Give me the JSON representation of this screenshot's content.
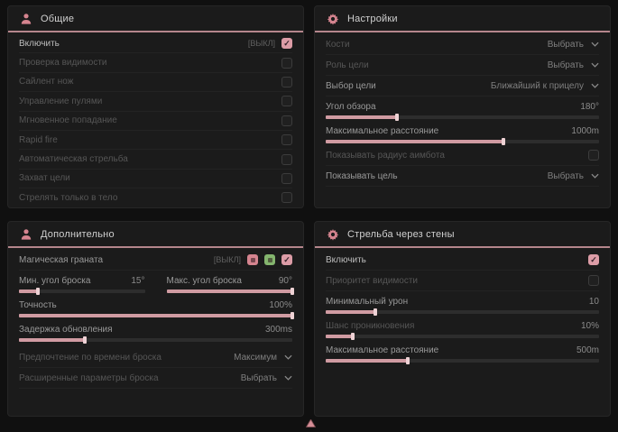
{
  "colors": {
    "accent": "#d09ba2",
    "header_underline": "#b5868c",
    "icon_pink": "#d5848f",
    "swatch_green": "#84b56e",
    "panel_bg": "#1b1b1b",
    "page_bg": "#101010",
    "checkbox_checked": "#dc9ca6"
  },
  "panels": {
    "general": {
      "title": "Общие",
      "icon": "person-icon",
      "rows": [
        {
          "label": "Включить",
          "badge": "[ВЫКЛ]",
          "checked": true
        },
        {
          "label": "Проверка видимости",
          "checked": false
        },
        {
          "label": "Сайлент нож",
          "checked": false
        },
        {
          "label": "Управление пулями",
          "checked": false
        },
        {
          "label": "Мгновенное попадание",
          "checked": false
        },
        {
          "label": "Rapid fire",
          "checked": false
        },
        {
          "label": "Автоматическая стрельба",
          "checked": false
        },
        {
          "label": "Захват цели",
          "checked": false
        },
        {
          "label": "Стрелять только в тело",
          "checked": false
        }
      ]
    },
    "settings": {
      "title": "Настройки",
      "icon": "gear-icon",
      "rows": {
        "bones": {
          "label": "Кости",
          "value": "Выбрать"
        },
        "target_role": {
          "label": "Роль цели",
          "value": "Выбрать"
        },
        "target_select": {
          "label": "Выбор цели",
          "value": "Ближайший к прицелу"
        },
        "fov": {
          "label": "Угол обзора",
          "value": "180°",
          "fill": 26
        },
        "max_distance": {
          "label": "Максимальное расстояние",
          "value": "1000m",
          "fill": 65
        },
        "show_radius": {
          "label": "Показывать радиус аимбота",
          "checked": false
        },
        "show_target": {
          "label": "Показывать цель",
          "value": "Выбрать"
        }
      }
    },
    "additional": {
      "title": "Дополнительно",
      "icon": "person-icon",
      "rows": {
        "magic_grenade": {
          "label": "Магическая граната",
          "badge": "[ВЫКЛ]",
          "checked": true
        },
        "min_throw": {
          "label": "Мин. угол броска",
          "value": "15°",
          "fill": 15
        },
        "max_throw": {
          "label": "Макс. угол броска",
          "value": "90°",
          "fill": 100
        },
        "accuracy": {
          "label": "Точность",
          "value": "100%",
          "fill": 100
        },
        "update_delay": {
          "label": "Задержка обновления",
          "value": "300ms",
          "fill": 24
        },
        "throw_time_pref": {
          "label": "Предпочтение по времени броска",
          "value": "Максимум"
        },
        "advanced_throw": {
          "label": "Расширенные параметры броска",
          "value": "Выбрать"
        }
      }
    },
    "wallbang": {
      "title": "Стрельба через стены",
      "icon": "gear-icon",
      "rows": {
        "enable": {
          "label": "Включить",
          "checked": true
        },
        "visibility_priority": {
          "label": "Приоритет видимости",
          "checked": false
        },
        "min_damage": {
          "label": "Минимальный урон",
          "value": "10",
          "fill": 18
        },
        "penetration_chance": {
          "label": "Шанс проникновения",
          "value": "10%",
          "fill": 10
        },
        "max_distance": {
          "label": "Максимальное расстояние",
          "value": "500m",
          "fill": 30
        }
      }
    }
  }
}
